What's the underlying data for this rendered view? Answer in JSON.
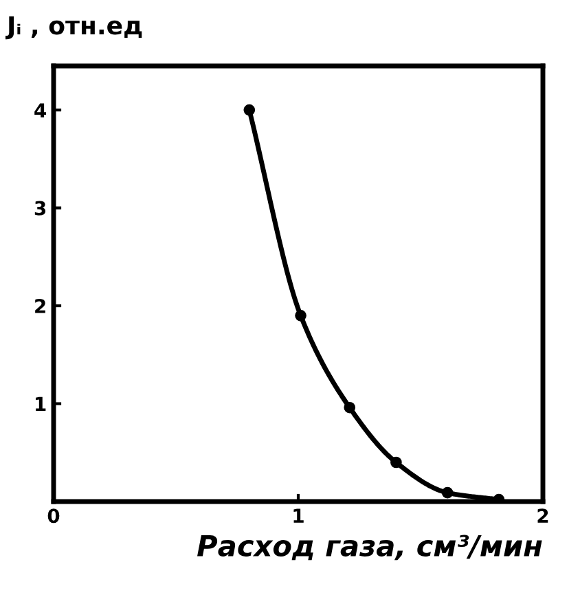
{
  "chart_data": {
    "type": "line",
    "xlabel": "Расход газа, см³/мин",
    "ylabel": "Jᵢ , отн.ед",
    "x": [
      0.8,
      1.01,
      1.21,
      1.4,
      1.61,
      1.82
    ],
    "series": [
      {
        "color": "#000000",
        "values": [
          4.0,
          1.9,
          0.96,
          0.4,
          0.09,
          0.02
        ]
      }
    ],
    "xlim": [
      0,
      2
    ],
    "ylim": [
      0,
      4.45
    ],
    "xticks": [
      0,
      1,
      2
    ],
    "yticks": [
      1,
      2,
      3,
      4
    ],
    "marker": "circle",
    "line_style": "solid",
    "grid": false,
    "legend": false
  }
}
